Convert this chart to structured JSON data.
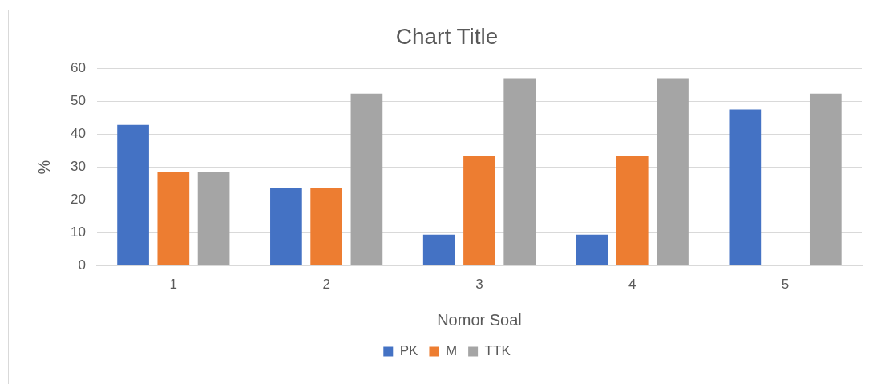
{
  "chart_data": {
    "type": "bar",
    "title": "Chart Title",
    "xlabel": "Nomor Soal",
    "ylabel": "%",
    "categories": [
      "1",
      "2",
      "3",
      "4",
      "5"
    ],
    "series": [
      {
        "name": "PK",
        "color": "#4472c4",
        "values": [
          42.9,
          23.8,
          9.5,
          9.5,
          47.6
        ]
      },
      {
        "name": "M",
        "color": "#ed7d31",
        "values": [
          28.6,
          23.8,
          33.3,
          33.3,
          0
        ]
      },
      {
        "name": "TTK",
        "color": "#a5a5a5",
        "values": [
          28.6,
          52.4,
          57.1,
          57.1,
          52.4
        ]
      }
    ],
    "ylim": [
      0,
      60
    ],
    "yticks": [
      0,
      10,
      20,
      30,
      40,
      50,
      60
    ],
    "grid": "y",
    "legend": "bottom"
  }
}
